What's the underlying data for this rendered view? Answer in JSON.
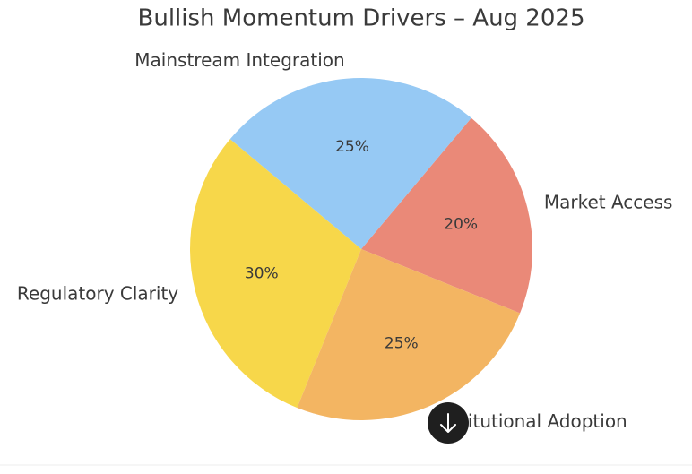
{
  "chart_data": {
    "type": "pie",
    "title": "Bullish Momentum Drivers – Aug 2025",
    "categories": [
      "Market Access",
      "Mainstream Integration",
      "Regulatory Clarity",
      "Institutional Adoption"
    ],
    "values": [
      20,
      25,
      30,
      25
    ],
    "value_labels": [
      "20%",
      "25%",
      "30%",
      "25%"
    ],
    "colors": [
      "#ea8978",
      "#96c9f4",
      "#f7d74a",
      "#f3b562"
    ]
  }
}
